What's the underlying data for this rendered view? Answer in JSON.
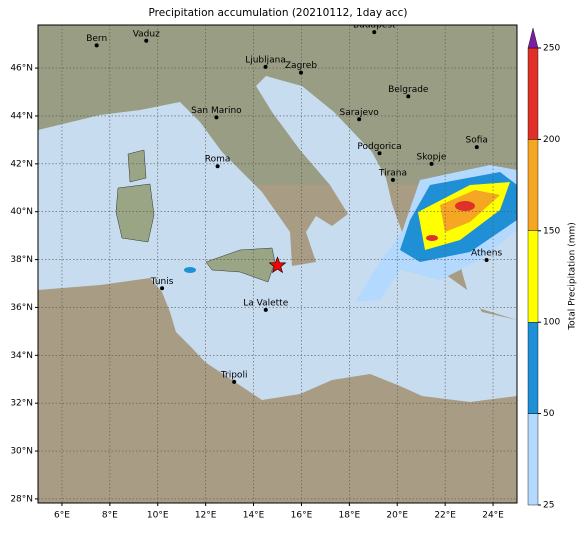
{
  "title": "Precipitation accumulation (20210112, 1day acc)",
  "map": {
    "xlim": [
      5,
      25
    ],
    "ylim": [
      27.83,
      47.8
    ],
    "lon_ticks": [
      {
        "value": 6,
        "label": "6°E"
      },
      {
        "value": 8,
        "label": "8°E"
      },
      {
        "value": 10,
        "label": "10°E"
      },
      {
        "value": 12,
        "label": "12°E"
      },
      {
        "value": 14,
        "label": "14°E"
      },
      {
        "value": 16,
        "label": "16°E"
      },
      {
        "value": 18,
        "label": "18°E"
      },
      {
        "value": 20,
        "label": "20°E"
      },
      {
        "value": 22,
        "label": "22°E"
      },
      {
        "value": 24,
        "label": "24°E"
      }
    ],
    "lat_ticks": [
      {
        "value": 28,
        "label": "28°N"
      },
      {
        "value": 30,
        "label": "30°N"
      },
      {
        "value": 32,
        "label": "32°N"
      },
      {
        "value": 34,
        "label": "34°N"
      },
      {
        "value": 36,
        "label": "36°N"
      },
      {
        "value": 38,
        "label": "38°N"
      },
      {
        "value": 40,
        "label": "40°N"
      },
      {
        "value": 42,
        "label": "42°N"
      },
      {
        "value": 44,
        "label": "44°N"
      },
      {
        "value": 46,
        "label": "46°N"
      }
    ],
    "cities": [
      {
        "name": "Bern",
        "lon": 7.45,
        "lat": 46.95
      },
      {
        "name": "Vaduz",
        "lon": 9.52,
        "lat": 47.14
      },
      {
        "name": "Budapest",
        "lon": 19.04,
        "lat": 47.5
      },
      {
        "name": "Ljubljana",
        "lon": 14.5,
        "lat": 46.05
      },
      {
        "name": "Zagreb",
        "lon": 15.98,
        "lat": 45.81
      },
      {
        "name": "Belgrade",
        "lon": 20.46,
        "lat": 44.82
      },
      {
        "name": "San Marino",
        "lon": 12.45,
        "lat": 43.94
      },
      {
        "name": "Sarajevo",
        "lon": 18.41,
        "lat": 43.86
      },
      {
        "name": "Sofia",
        "lon": 23.32,
        "lat": 42.7
      },
      {
        "name": "Podgorica",
        "lon": 19.26,
        "lat": 42.44
      },
      {
        "name": "Skopje",
        "lon": 21.43,
        "lat": 42.0
      },
      {
        "name": "Roma",
        "lon": 12.5,
        "lat": 41.9
      },
      {
        "name": "Tirana",
        "lon": 19.82,
        "lat": 41.33
      },
      {
        "name": "Athens",
        "lon": 23.73,
        "lat": 37.98
      },
      {
        "name": "Tunis",
        "lon": 10.18,
        "lat": 36.8
      },
      {
        "name": "La Valette",
        "lon": 14.51,
        "lat": 35.9
      },
      {
        "name": "Tripoli",
        "lon": 13.19,
        "lat": 32.89
      }
    ],
    "star": {
      "lon": 15.0,
      "lat": 37.75,
      "color": "#ff0000"
    }
  },
  "colorbar": {
    "label": "Total Precipitation (mm)",
    "ticks": [
      25,
      50,
      100,
      150,
      200,
      250
    ],
    "colors": [
      "#b3d9ff",
      "#1f8fd6",
      "#ffff00",
      "#f5a623",
      "#e0302a"
    ],
    "extend_color": "#7b1fa2"
  }
}
